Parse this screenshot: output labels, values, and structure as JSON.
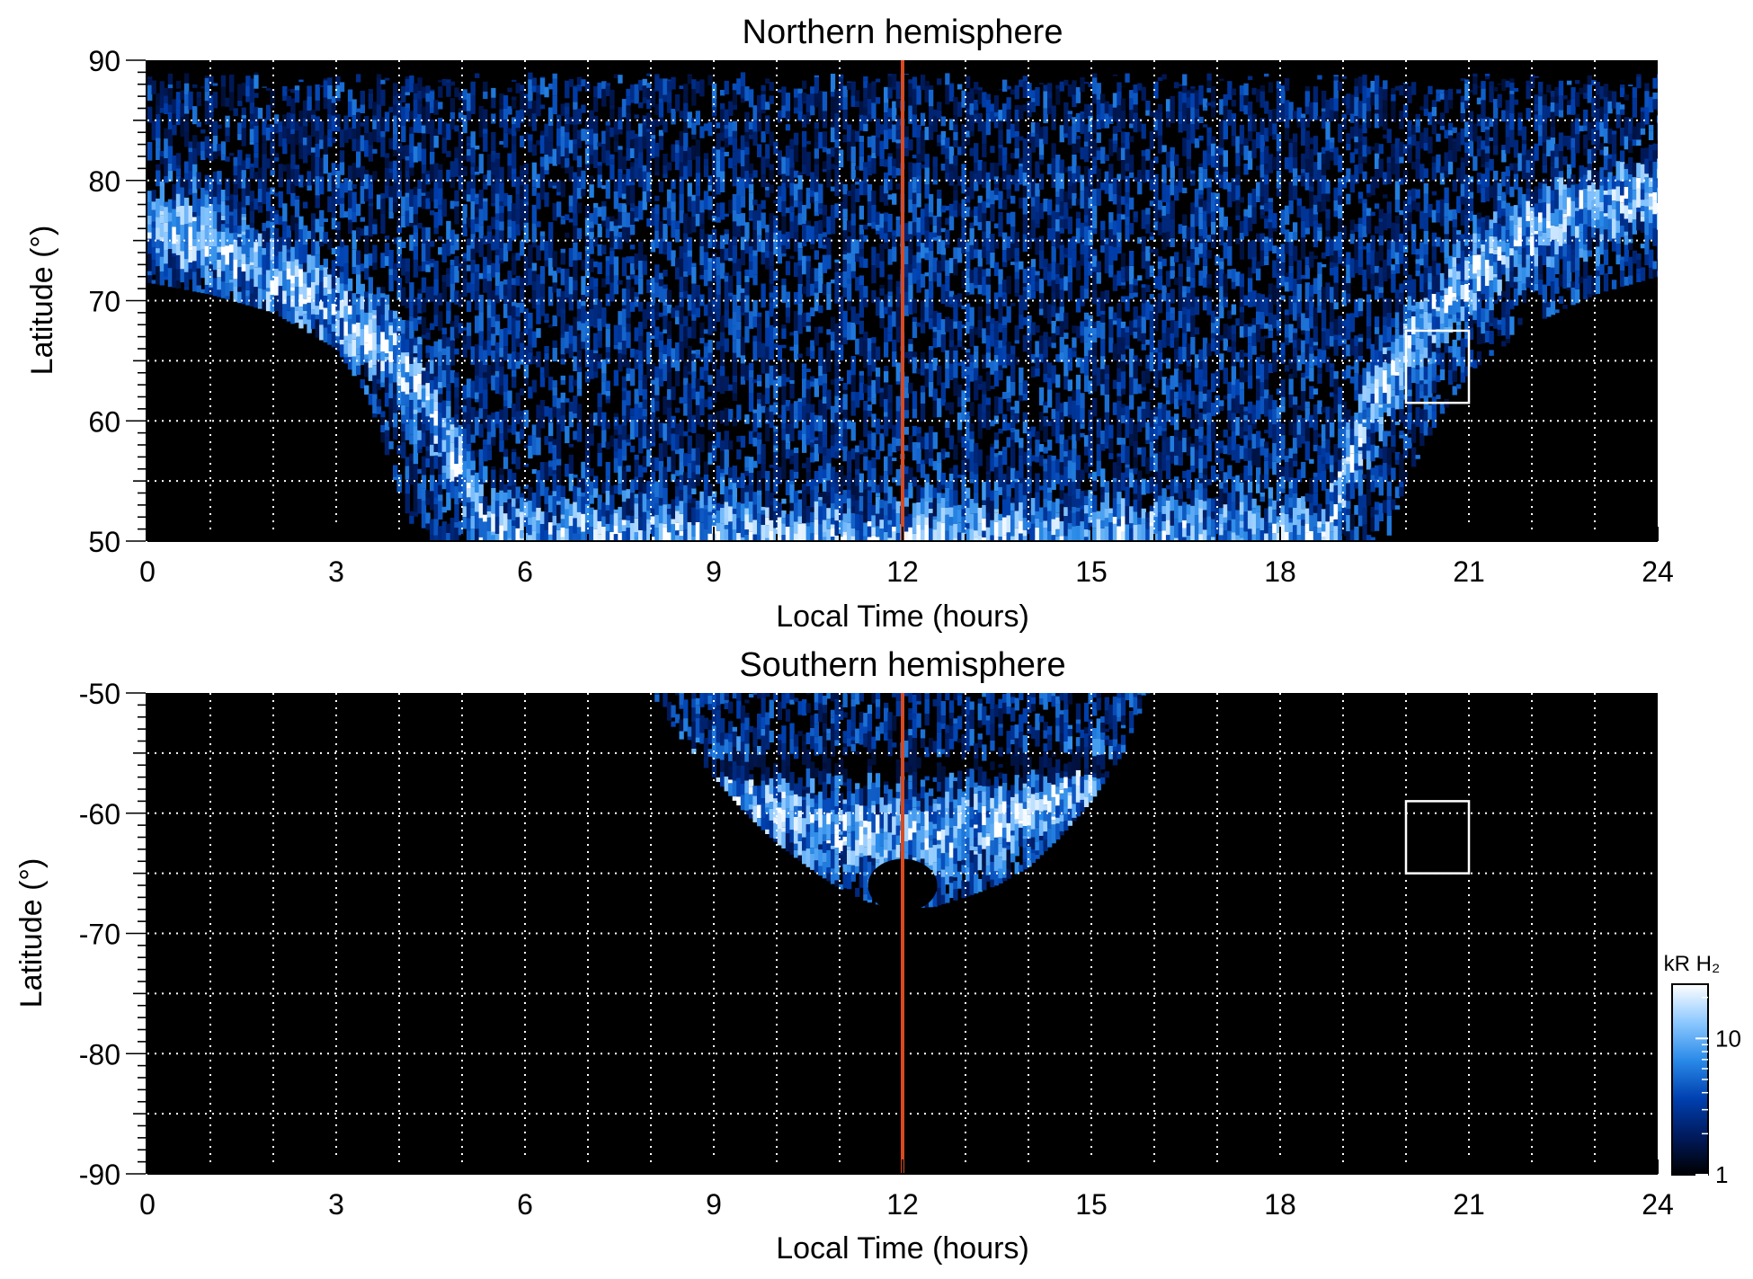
{
  "chart_data": [
    {
      "type": "heatmap",
      "title": "Northern hemisphere",
      "xlabel": "Local Time (hours)",
      "ylabel": "Latitude (°)",
      "xlim": [
        0,
        24
      ],
      "ylim": [
        50,
        90
      ],
      "xticks": [
        0,
        3,
        6,
        9,
        12,
        15,
        18,
        21,
        24
      ],
      "yticks": [
        50,
        60,
        70,
        80,
        90
      ],
      "xtick_labels": [
        "0",
        "3",
        "6",
        "9",
        "12",
        "15",
        "18",
        "21",
        "24"
      ],
      "ytick_labels": [
        "50",
        "60",
        "70",
        "80",
        "90"
      ],
      "grid": true,
      "noon_line": {
        "x": 12,
        "color": "#d84a1f"
      },
      "box": {
        "x0": 20,
        "x1": 21,
        "y0": 61.5,
        "y1": 67.5
      },
      "coverage_boundary": [
        [
          0,
          71.5
        ],
        [
          1,
          70.5
        ],
        [
          2,
          69
        ],
        [
          3,
          66
        ],
        [
          3.5,
          62
        ],
        [
          4,
          54
        ],
        [
          4.3,
          50
        ],
        [
          19.7,
          50
        ],
        [
          20,
          55
        ],
        [
          20.5,
          60
        ],
        [
          21,
          64
        ],
        [
          22,
          68
        ],
        [
          23,
          70.5
        ],
        [
          24,
          72
        ]
      ],
      "coverage_top": 89,
      "auroral_oval": [
        [
          0,
          76
        ],
        [
          1,
          75
        ],
        [
          2,
          72
        ],
        [
          3,
          69
        ],
        [
          4,
          65
        ],
        [
          4.6,
          60
        ],
        [
          5.2,
          53
        ],
        [
          5.4,
          50
        ],
        [
          18.7,
          50
        ],
        [
          19,
          55
        ],
        [
          19.5,
          62
        ],
        [
          20.2,
          67
        ],
        [
          21,
          72
        ],
        [
          22,
          76
        ],
        [
          23,
          78
        ],
        [
          24,
          79
        ]
      ]
    },
    {
      "type": "heatmap",
      "title": "Southern hemisphere",
      "xlabel": "Local Time (hours)",
      "ylabel": "Latitude (°)",
      "xlim": [
        0,
        24
      ],
      "ylim": [
        -90,
        -50
      ],
      "xticks": [
        0,
        3,
        6,
        9,
        12,
        15,
        18,
        21,
        24
      ],
      "yticks": [
        -90,
        -80,
        -70,
        -60,
        -50
      ],
      "xtick_labels": [
        "0",
        "3",
        "6",
        "9",
        "12",
        "15",
        "18",
        "21",
        "24"
      ],
      "ytick_labels": [
        "-90",
        "-80",
        "-70",
        "-60",
        "-50"
      ],
      "grid": true,
      "noon_line": {
        "x": 12,
        "color": "#d84a1f"
      },
      "box": {
        "x0": 20,
        "x1": 21,
        "y0": -65,
        "y1": -59
      },
      "coverage_boundary": [
        [
          8,
          -50
        ],
        [
          8.5,
          -54
        ],
        [
          9,
          -57
        ],
        [
          9.5,
          -60
        ],
        [
          10,
          -62.5
        ],
        [
          10.5,
          -64.5
        ],
        [
          11,
          -66.3
        ],
        [
          11.5,
          -67.5
        ],
        [
          12,
          -68
        ],
        [
          12.5,
          -67.8
        ],
        [
          13,
          -67
        ],
        [
          13.5,
          -66
        ],
        [
          14,
          -64.5
        ],
        [
          14.5,
          -62
        ],
        [
          15,
          -59
        ],
        [
          15.5,
          -55
        ],
        [
          15.9,
          -50
        ]
      ],
      "inner_dark": {
        "x": 12,
        "y": -66,
        "rx": 0.55,
        "ry": 2.2
      },
      "auroral_oval": [
        [
          9.3,
          -58
        ],
        [
          10,
          -60
        ],
        [
          11,
          -61.5
        ],
        [
          12,
          -62
        ],
        [
          13,
          -61.5
        ],
        [
          14,
          -60
        ],
        [
          14.7,
          -58
        ]
      ],
      "colorbar": {
        "label": "kR H₂",
        "scale": "log",
        "range": [
          1,
          25
        ],
        "ticks": [
          1,
          10
        ],
        "tick_labels": [
          "1",
          "10"
        ],
        "colors": [
          "#000000",
          "#001a5c",
          "#0040b0",
          "#2a8ae8",
          "#8cc8ff",
          "#ffffff"
        ]
      }
    }
  ]
}
